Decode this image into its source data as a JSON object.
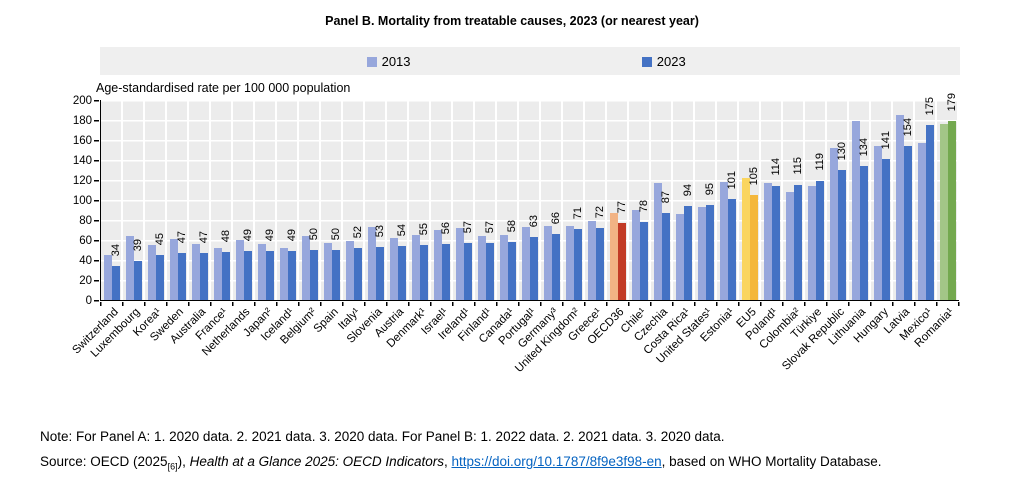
{
  "title": "Panel B. Mortality from treatable causes, 2023 (or nearest year)",
  "axis_caption": "Age-standardised rate per 100 000 population",
  "legend": {
    "items": [
      {
        "label": "2013",
        "color": "#97A7DC"
      },
      {
        "label": "2023",
        "color": "#4472C4"
      }
    ]
  },
  "y_ticks": [
    0,
    20,
    40,
    60,
    80,
    100,
    120,
    140,
    160,
    180,
    200
  ],
  "chart_data": {
    "type": "bar",
    "title": "Panel B. Mortality from treatable causes, 2023 (or nearest year)",
    "ylabel": "Age-standardised rate per 100 000 population",
    "ylim": [
      0,
      200
    ],
    "grid": true,
    "legend_position": "top",
    "categories": [
      "Switzerland",
      "Luxembourg",
      "Korea¹",
      "Sweden",
      "Australia",
      "France¹",
      "Netherlands",
      "Japan²",
      "Iceland¹",
      "Belgium²",
      "Spain",
      "Italy¹",
      "Slovenia",
      "Austria",
      "Denmark¹",
      "Israel¹",
      "Ireland¹",
      "Finland¹",
      "Canada¹",
      "Portugal¹",
      "Germany³",
      "United Kingdom²",
      "Greece¹",
      "OECD36",
      "Chile¹",
      "Czechia",
      "Costa Rica¹",
      "United States¹",
      "Estonia¹",
      "EU5",
      "Poland¹",
      "Colombia²",
      "Türkiye",
      "Slovak Republic",
      "Lithuania",
      "Hungary",
      "Latvia",
      "Mexico¹",
      "Romania¹"
    ],
    "series": [
      {
        "name": "2013",
        "values": [
          45,
          64,
          55,
          61,
          56,
          52,
          60,
          56,
          52,
          64,
          57,
          59,
          73,
          62,
          65,
          70,
          72,
          64,
          65,
          73,
          74,
          74,
          79,
          87,
          90,
          117,
          86,
          93,
          118,
          122,
          117,
          108,
          114,
          152,
          179,
          154,
          185,
          157,
          176
        ]
      },
      {
        "name": "2023",
        "values": [
          34,
          39,
          45,
          47,
          47,
          48,
          49,
          49,
          49,
          50,
          50,
          52,
          53,
          54,
          55,
          56,
          57,
          57,
          58,
          63,
          66,
          71,
          72,
          77,
          78,
          87,
          94,
          95,
          101,
          105,
          114,
          115,
          119,
          130,
          134,
          141,
          154,
          175,
          179
        ]
      }
    ],
    "data_labels_series": "2023",
    "palette": {
      "default": {
        "y2013": "#97A7DC",
        "y2023": "#4472C4"
      },
      "oecd": {
        "y2013": "#F2B384",
        "y2023": "#C23B26"
      },
      "eu": {
        "y2013": "#FAD55F",
        "y2023": "#F4B73C"
      },
      "green": {
        "y2013": "#A3C687",
        "y2023": "#74A94F"
      }
    },
    "special_groups": {
      "OECD36": "oecd",
      "EU5": "eu",
      "Romania¹": "green"
    }
  },
  "note": "Note: For Panel A: 1. 2020 data. 2. 2021 data. 3. 2020 data. For Panel B: 1. 2022 data. 2. 2021 data. 3. 2020 data.",
  "source": {
    "prefix": "Source: OECD (2025",
    "ref_sub": "[6]",
    "after_ref": "), ",
    "publication": "Health at a Glance 2025: OECD Indicators",
    "separator": ", ",
    "link": "https://doi.org/10.1787/8f9e3f98-en",
    "suffix": ", based on WHO Mortality Database."
  }
}
